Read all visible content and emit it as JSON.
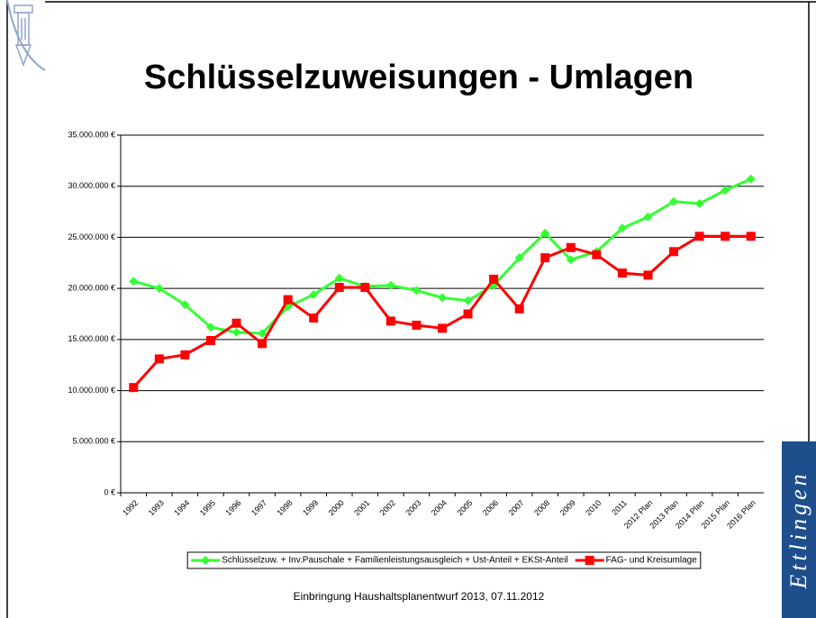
{
  "slide": {
    "title": "Schlüsselzuweisungen - Umlagen",
    "footer": "Einbringung Haushaltsplanentwurf 2013, 07.11.2012",
    "brand": "Ettlingen"
  },
  "chart_data": {
    "type": "line",
    "categories": [
      "1992",
      "1993",
      "1994",
      "1995",
      "1996",
      "1997",
      "1998",
      "1999",
      "2000",
      "2001",
      "2002",
      "2003",
      "2004",
      "2005",
      "2006",
      "2007",
      "2008",
      "2009",
      "2010",
      "2011",
      "2012 Plan",
      "2013 Plan",
      "2014 Plan",
      "2015 Plan",
      "2016 Plan"
    ],
    "series": [
      {
        "name": "Schlüsselzuw. + Inv.Pauschale + Familienleistungsausgleich + Ust-Anteil + EKSt-Anteil",
        "color": "#33ff33",
        "marker": "diamond",
        "values": [
          20700000,
          20000000,
          18400000,
          16200000,
          15700000,
          15600000,
          18200000,
          19400000,
          21000000,
          20200000,
          20300000,
          19800000,
          19100000,
          18800000,
          20300000,
          23000000,
          25400000,
          22800000,
          23600000,
          25900000,
          27000000,
          28500000,
          28300000,
          29600000,
          30700000
        ]
      },
      {
        "name": "FAG- und Kreisumlage",
        "color": "#ff0000",
        "marker": "square",
        "values": [
          10300000,
          13100000,
          13500000,
          14900000,
          16600000,
          14600000,
          18900000,
          17100000,
          20100000,
          20100000,
          16800000,
          16400000,
          16100000,
          17500000,
          20900000,
          18000000,
          23000000,
          24000000,
          23300000,
          21500000,
          21300000,
          23600000,
          25100000,
          25100000,
          25100000
        ]
      }
    ],
    "ylim": [
      0,
      35000000
    ],
    "yticks": [
      {
        "value": 0,
        "label": "0 €"
      },
      {
        "value": 5000000,
        "label": "5.000.000 €"
      },
      {
        "value": 10000000,
        "label": "10.000.000 €"
      },
      {
        "value": 15000000,
        "label": "15.000.000 €"
      },
      {
        "value": 20000000,
        "label": "20.000.000 €"
      },
      {
        "value": 25000000,
        "label": "25.000.000 €"
      },
      {
        "value": 30000000,
        "label": "30.000.000 €"
      },
      {
        "value": 35000000,
        "label": "35.000.000 €"
      }
    ],
    "grid": true,
    "legend": "bottom"
  }
}
